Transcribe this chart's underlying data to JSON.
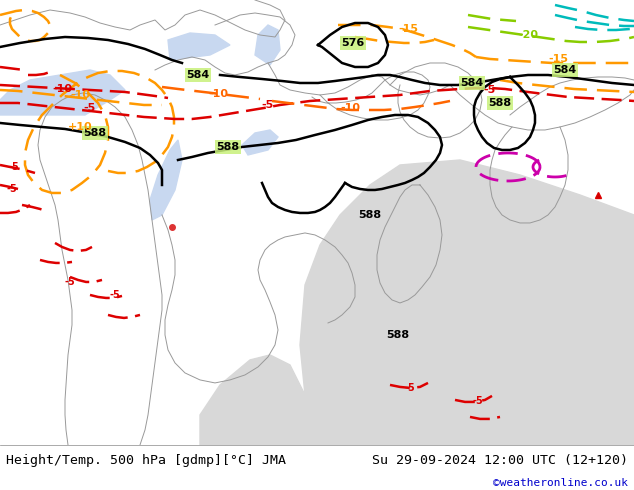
{
  "title_left": "Height/Temp. 500 hPa [gdmp][°C] JMA",
  "title_right": "Su 29-09-2024 12:00 UTC (12+120)",
  "watermark": "©weatheronline.co.uk",
  "land_color": "#c8f07a",
  "ocean_color": "#d8d8d8",
  "border_color": "#999999",
  "bottom_bar_color": "#ffffff",
  "watermark_color": "#0000cc",
  "figsize": [
    6.34,
    4.9
  ],
  "dpi": 100
}
